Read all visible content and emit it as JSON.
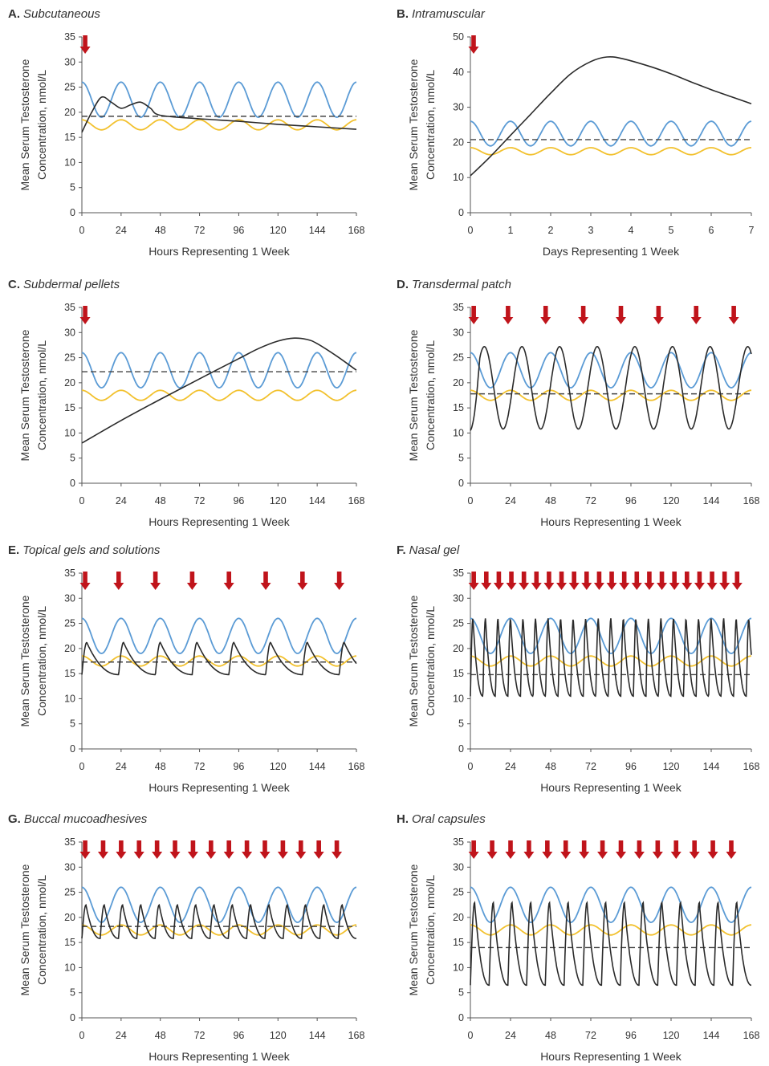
{
  "figure": {
    "colors": {
      "upper": "#5b9bd5",
      "lower": "#f2c12e",
      "drug": "#2a2a2a",
      "dashed": "#444444",
      "arrow": "#c0141b",
      "axis": "#555555"
    },
    "panels": [
      {
        "letter": "A.",
        "name": "Subcutaneous",
        "xlabel": "Hours Representing 1 Week",
        "ylabel1": "Mean Serum Testosterone",
        "ylabel2": "Concentration, nmol/L",
        "xticks": [
          0,
          24,
          48,
          72,
          96,
          120,
          144,
          168
        ],
        "xlim": [
          0,
          168
        ],
        "yticks": [
          0,
          5,
          10,
          15,
          20,
          25,
          30,
          35
        ],
        "ylim": [
          0,
          35
        ],
        "upper": {
          "min": 19,
          "max": 26,
          "period": 24
        },
        "lower": {
          "min": 16.5,
          "max": 18.5,
          "period": 24
        },
        "dashed": 19.2,
        "drug": {
          "type": "points",
          "points": [
            [
              0,
              16
            ],
            [
              6,
              20
            ],
            [
              12,
              23
            ],
            [
              18,
              22
            ],
            [
              24,
              20.8
            ],
            [
              30,
              21.5
            ],
            [
              36,
              22
            ],
            [
              42,
              20.8
            ],
            [
              48,
              19.4
            ],
            [
              72,
              18.7
            ],
            [
              96,
              18.2
            ],
            [
              120,
              17.6
            ],
            [
              144,
              17.1
            ],
            [
              168,
              16.6
            ]
          ]
        },
        "arrows": [
          2
        ]
      },
      {
        "letter": "B.",
        "name": "Intramuscular",
        "xlabel": "Days Representing 1 Week",
        "ylabel1": "Mean Serum Testosterone",
        "ylabel2": "Concentration, nmol/L",
        "xticks": [
          0,
          1,
          2,
          3,
          4,
          5,
          6,
          7
        ],
        "xlim": [
          0,
          7
        ],
        "yticks": [
          0,
          10,
          20,
          30,
          40,
          50
        ],
        "ylim": [
          0,
          50
        ],
        "upper": {
          "min": 19,
          "max": 26,
          "period": 1
        },
        "lower": {
          "min": 16.5,
          "max": 18.5,
          "period": 1
        },
        "dashed": 20.8,
        "drug": {
          "type": "points",
          "points": [
            [
              0,
              10.5
            ],
            [
              0.5,
              16
            ],
            [
              1,
              22
            ],
            [
              1.5,
              28
            ],
            [
              2,
              34
            ],
            [
              2.5,
              39.5
            ],
            [
              3,
              43
            ],
            [
              3.4,
              44.3
            ],
            [
              3.8,
              43.8
            ],
            [
              4.5,
              41.5
            ],
            [
              5,
              39.5
            ],
            [
              5.5,
              37.2
            ],
            [
              6,
              35
            ],
            [
              6.5,
              33
            ],
            [
              7,
              31
            ]
          ]
        },
        "arrows": [
          0.08
        ]
      },
      {
        "letter": "C.",
        "name": "Subdermal pellets",
        "xlabel": "Hours Representing 1 Week",
        "ylabel1": "Mean Serum Testosterone",
        "ylabel2": "Concentration, nmol/L",
        "xticks": [
          0,
          24,
          48,
          72,
          96,
          120,
          144,
          168
        ],
        "xlim": [
          0,
          168
        ],
        "yticks": [
          0,
          5,
          10,
          15,
          20,
          25,
          30,
          35
        ],
        "ylim": [
          0,
          35
        ],
        "upper": {
          "min": 19,
          "max": 26,
          "period": 24
        },
        "lower": {
          "min": 16.5,
          "max": 18.5,
          "period": 24
        },
        "dashed": 22.2,
        "drug": {
          "type": "points",
          "points": [
            [
              0,
              8
            ],
            [
              24,
              12.5
            ],
            [
              48,
              16.7
            ],
            [
              72,
              20.8
            ],
            [
              96,
              24.8
            ],
            [
              108,
              26.8
            ],
            [
              120,
              28.3
            ],
            [
              130,
              28.9
            ],
            [
              138,
              28.6
            ],
            [
              144,
              27.8
            ],
            [
              156,
              25.3
            ],
            [
              168,
              22.5
            ]
          ]
        },
        "arrows": [
          2
        ]
      },
      {
        "letter": "D.",
        "name": "Transdermal patch",
        "xlabel": "Hours Representing 1 Week",
        "ylabel1": "Mean Serum Testosterone",
        "ylabel2": "Concentration, nmol/L",
        "xticks": [
          0,
          24,
          48,
          72,
          96,
          120,
          144,
          168
        ],
        "xlim": [
          0,
          168
        ],
        "yticks": [
          0,
          5,
          10,
          15,
          20,
          25,
          30,
          35
        ],
        "ylim": [
          0,
          35
        ],
        "upper": {
          "min": 19,
          "max": 26,
          "period": 24
        },
        "lower": {
          "min": 16.5,
          "max": 18.5,
          "period": 24
        },
        "dashed": 17.8,
        "drug": {
          "type": "wave",
          "min": 10.8,
          "max": 27.2,
          "period": 22.5,
          "start": 10.5,
          "end": 10.8
        },
        "arrows": [
          2,
          22.5,
          45,
          67.5,
          90,
          112.5,
          135,
          157.5
        ]
      },
      {
        "letter": "E.",
        "name": "Topical gels and solutions",
        "xlabel": "Hours Representing 1 Week",
        "ylabel1": "Mean Serum Testosterone",
        "ylabel2": "Concentration, nmol/L",
        "xticks": [
          0,
          24,
          48,
          72,
          96,
          120,
          144,
          168
        ],
        "xlim": [
          0,
          168
        ],
        "yticks": [
          0,
          5,
          10,
          15,
          20,
          25,
          30,
          35
        ],
        "ylim": [
          0,
          35
        ],
        "upper": {
          "min": 19,
          "max": 26,
          "period": 24
        },
        "lower": {
          "min": 16.5,
          "max": 18.5,
          "period": 24
        },
        "dashed": 17.3,
        "drug": {
          "type": "spikes",
          "base": 14.8,
          "peak": 21.2,
          "rise": 3,
          "period": 22.5
        },
        "arrows": [
          2,
          22.5,
          45,
          67.5,
          90,
          112.5,
          135,
          157.5
        ]
      },
      {
        "letter": "F.",
        "name": "Nasal gel",
        "xlabel": "Hours Representing 1 Week",
        "ylabel1": "Mean Serum Testosterone",
        "ylabel2": "Concentration, nmol/L",
        "xticks": [
          0,
          24,
          48,
          72,
          96,
          120,
          144,
          168
        ],
        "xlim": [
          0,
          168
        ],
        "yticks": [
          0,
          5,
          10,
          15,
          20,
          25,
          30,
          35
        ],
        "ylim": [
          0,
          35
        ],
        "upper": {
          "min": 19,
          "max": 26,
          "period": 24
        },
        "lower": {
          "min": 16.5,
          "max": 18.5,
          "period": 24
        },
        "dashed": 14.8,
        "drug": {
          "type": "spikes",
          "base": 10.5,
          "peak": 26,
          "rise": 1.5,
          "period": 7.5
        },
        "arrows": [
          2,
          9.5,
          17,
          24.5,
          32,
          39.5,
          47,
          54.5,
          62,
          69.5,
          77,
          84.5,
          92,
          99.5,
          107,
          114.5,
          122,
          129.5,
          137,
          144.5,
          152,
          159.5
        ]
      },
      {
        "letter": "G.",
        "name": "Buccal mucoadhesives",
        "xlabel": "Hours Representing 1 Week",
        "ylabel1": "Mean Serum Testosterone",
        "ylabel2": "Concentration, nmol/L",
        "xticks": [
          0,
          24,
          48,
          72,
          96,
          120,
          144,
          168
        ],
        "xlim": [
          0,
          168
        ],
        "yticks": [
          0,
          5,
          10,
          15,
          20,
          25,
          30,
          35
        ],
        "ylim": [
          0,
          35
        ],
        "upper": {
          "min": 19,
          "max": 26,
          "period": 24
        },
        "lower": {
          "min": 16.5,
          "max": 18.5,
          "period": 24
        },
        "dashed": 18.2,
        "drug": {
          "type": "spikes",
          "base": 15.8,
          "peak": 22.5,
          "rise": 2.5,
          "period": 11.2
        },
        "arrows": [
          2,
          13,
          24,
          35,
          46,
          57,
          68,
          79,
          90,
          101,
          112,
          123,
          134,
          145,
          156
        ]
      },
      {
        "letter": "H.",
        "name": "Oral capsules",
        "xlabel": "Hours Representing 1 Week",
        "ylabel1": "Mean Serum Testosterone",
        "ylabel2": "Concentration, nmol/L",
        "xticks": [
          0,
          24,
          48,
          72,
          96,
          120,
          144,
          168
        ],
        "xlim": [
          0,
          168
        ],
        "yticks": [
          0,
          5,
          10,
          15,
          20,
          25,
          30,
          35
        ],
        "ylim": [
          0,
          35
        ],
        "upper": {
          "min": 19,
          "max": 26,
          "period": 24
        },
        "lower": {
          "min": 16.5,
          "max": 18.5,
          "period": 24
        },
        "dashed": 14,
        "drug": {
          "type": "spikes",
          "base": 6.5,
          "peak": 23,
          "rise": 2.5,
          "period": 11.2
        },
        "arrows": [
          2,
          13,
          24,
          35,
          46,
          57,
          68,
          79,
          90,
          101,
          112,
          123,
          134,
          145,
          156
        ]
      }
    ]
  }
}
